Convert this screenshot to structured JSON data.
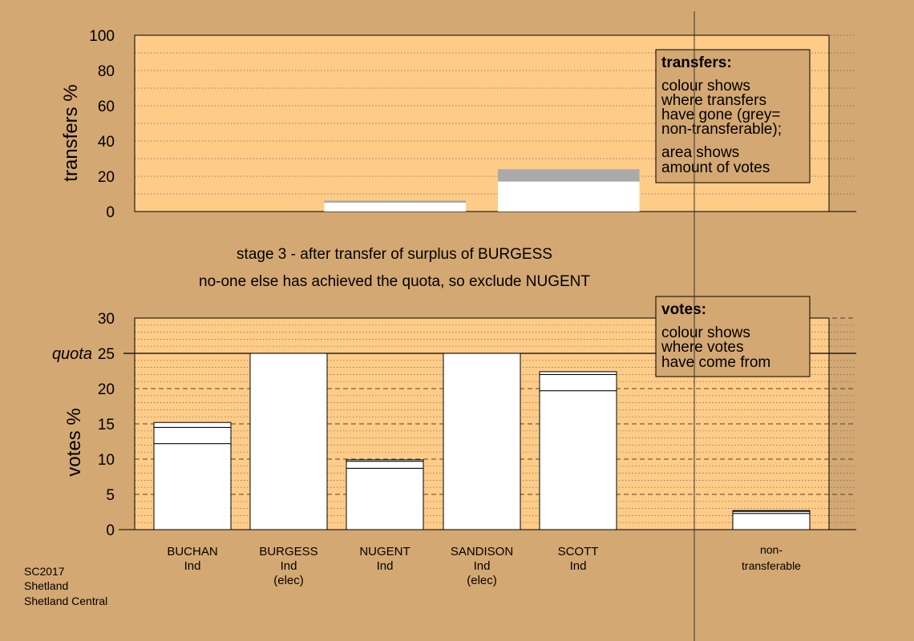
{
  "colors": {
    "background": "#d4a872",
    "plot_area": "#ffcc88",
    "bar_fill": "#ffffff",
    "non_transferable": "#aaaaaa",
    "legend_box": "#d4a872"
  },
  "stage_heading": "stage 3 - after transfer of surplus of BURGESS",
  "stage_subheading": "no-one else has achieved the quota, so exclude NUGENT",
  "footer": {
    "line1": "SC2017",
    "line2": "Shetland",
    "line3": "Shetland Central"
  },
  "transfers_legend": {
    "title": "transfers:",
    "line1": "colour shows",
    "line2": "where transfers",
    "line3": "have gone (grey=",
    "line4": "non-transferable);",
    "line5": "area shows",
    "line6": "amount of votes"
  },
  "votes_legend": {
    "title": "votes:",
    "line1": "colour shows",
    "line2": "where votes",
    "line3": "have come from"
  },
  "quota_label": "quota",
  "candidates": [
    {
      "name": "BUCHAN",
      "party": "Ind",
      "status": ""
    },
    {
      "name": "BURGESS",
      "party": "Ind",
      "status": "(elec)"
    },
    {
      "name": "NUGENT",
      "party": "Ind",
      "status": ""
    },
    {
      "name": "SANDISON",
      "party": "Ind",
      "status": "(elec)"
    },
    {
      "name": "SCOTT",
      "party": "Ind",
      "status": ""
    }
  ],
  "non_transferable_label": {
    "line1": "non-",
    "line2": "transferable"
  },
  "chart_data": [
    {
      "type": "bar",
      "title": "transfers",
      "ylabel": "transfers %",
      "ylim": [
        0,
        100
      ],
      "yticks": [
        0,
        20,
        40,
        60,
        80,
        100
      ],
      "grid": true,
      "legend": "top-right",
      "columns": [
        {
          "segments": []
        },
        {
          "segments": [
            {
              "value": 5.0,
              "kind": "transfer"
            },
            {
              "value": 1.2,
              "kind": "non-transferable"
            }
          ]
        },
        {
          "segments": [
            {
              "value": 17.0,
              "kind": "transfer"
            },
            {
              "value": 7.0,
              "kind": "non-transferable"
            }
          ]
        },
        {
          "segments": []
        }
      ]
    },
    {
      "type": "bar",
      "title": "votes",
      "ylabel": "votes %",
      "ylim": [
        0,
        30
      ],
      "yticks": [
        0,
        5,
        10,
        15,
        20,
        25,
        30
      ],
      "quota": 25,
      "grid": true,
      "legend": "top-right",
      "categories": [
        "BUCHAN",
        "BURGESS",
        "NUGENT",
        "SANDISON",
        "SCOTT",
        "non-transferable"
      ],
      "stacks": [
        [
          12.2,
          2.3,
          0.7
        ],
        [
          25.0
        ],
        [
          8.7,
          1.0,
          0.2
        ],
        [
          25.0
        ],
        [
          19.7,
          2.3,
          0.4
        ],
        [
          2.3,
          0.3,
          0.1
        ]
      ]
    }
  ]
}
